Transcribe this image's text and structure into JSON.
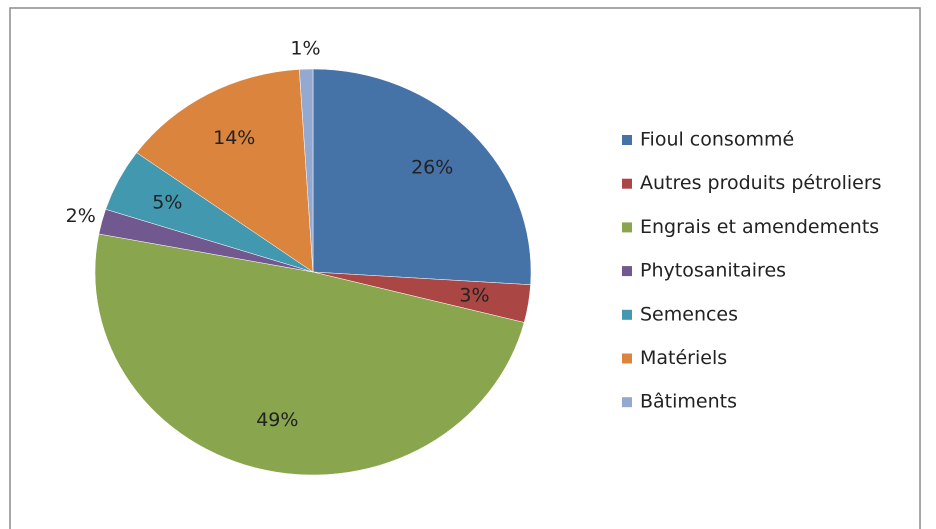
{
  "chart_data": {
    "type": "pie",
    "categories": [
      "Fioul consommé",
      "Autres produits pétroliers",
      "Engrais et amendements",
      "Phytosanitaires",
      "Semences",
      "Matériels",
      "Bâtiments"
    ],
    "values": [
      26,
      3,
      49,
      2,
      5,
      14,
      1
    ],
    "value_labels": [
      "26%",
      "3%",
      "49%",
      "2%",
      "5%",
      "14%",
      "1%"
    ],
    "colors": [
      "#4572a7",
      "#aa4643",
      "#89a54e",
      "#71588f",
      "#4198af",
      "#db843d",
      "#93a9cf"
    ],
    "legend": "right"
  }
}
